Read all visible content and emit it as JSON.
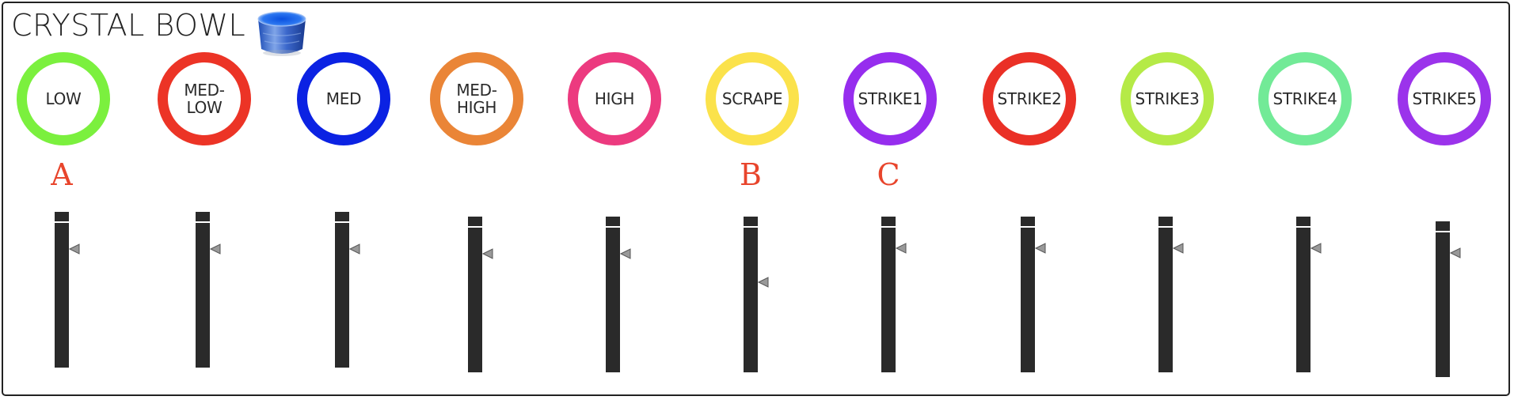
{
  "app": {
    "title": "CRYSTAL BOWL",
    "image_name": "crystal-bowl-image"
  },
  "colors": {
    "border": "#222222",
    "text": "#2a2a2a",
    "key_letter": "#e8452c",
    "fader": "#2a2a2a",
    "handle": "#999999"
  },
  "pads": [
    {
      "label": "LOW",
      "color": "#7bf03e"
    },
    {
      "label": "MED-\nLOW",
      "color": "#ec3426"
    },
    {
      "label": "MED",
      "color": "#0b22e3"
    },
    {
      "label": "MED-\nHIGH",
      "color": "#ea8537"
    },
    {
      "label": "HIGH",
      "color": "#ec3a7f"
    },
    {
      "label": "SCRAPE",
      "color": "#fbe24b"
    },
    {
      "label": "STRIKE1",
      "color": "#962dee"
    },
    {
      "label": "STRIKE2",
      "color": "#ea3026"
    },
    {
      "label": "STRIKE3",
      "color": "#b5ea47"
    },
    {
      "label": "STRIKE4",
      "color": "#72ea97"
    },
    {
      "label": "STRIKE5",
      "color": "#9b33eb"
    }
  ],
  "key_letters": [
    {
      "pad_index": 0,
      "letter": "A"
    },
    {
      "pad_index": 5,
      "letter": "B"
    },
    {
      "pad_index": 6,
      "letter": "C"
    }
  ],
  "faders": [
    {
      "level": 0.83
    },
    {
      "level": 0.83
    },
    {
      "level": 0.83
    },
    {
      "level": 0.83
    },
    {
      "level": 0.83
    },
    {
      "level": 0.65
    },
    {
      "level": 0.87
    },
    {
      "level": 0.87
    },
    {
      "level": 0.87
    },
    {
      "level": 0.87
    },
    {
      "level": 0.87
    }
  ]
}
